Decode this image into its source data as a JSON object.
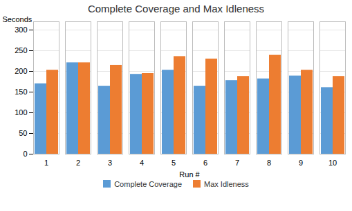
{
  "chart_data": {
    "type": "bar",
    "title": "Complete Coverage and Max Idleness",
    "x_label": "Run #",
    "y_label": "Seconds",
    "categories": [
      "1",
      "2",
      "3",
      "4",
      "5",
      "6",
      "7",
      "8",
      "9",
      "10"
    ],
    "series": [
      {
        "name": "Complete Coverage",
        "color": "#5B9BD5",
        "values": [
          170,
          221,
          164,
          193,
          203,
          164,
          178,
          182,
          189,
          161
        ]
      },
      {
        "name": "Max Idleness",
        "color": "#ED7D31",
        "values": [
          203,
          221,
          215,
          195,
          236,
          230,
          188,
          239,
          203,
          188
        ]
      }
    ],
    "ylim": [
      0,
      320
    ],
    "yticks": [
      0,
      50,
      100,
      150,
      200,
      250,
      300
    ],
    "grid": true,
    "legend": "bottom"
  }
}
